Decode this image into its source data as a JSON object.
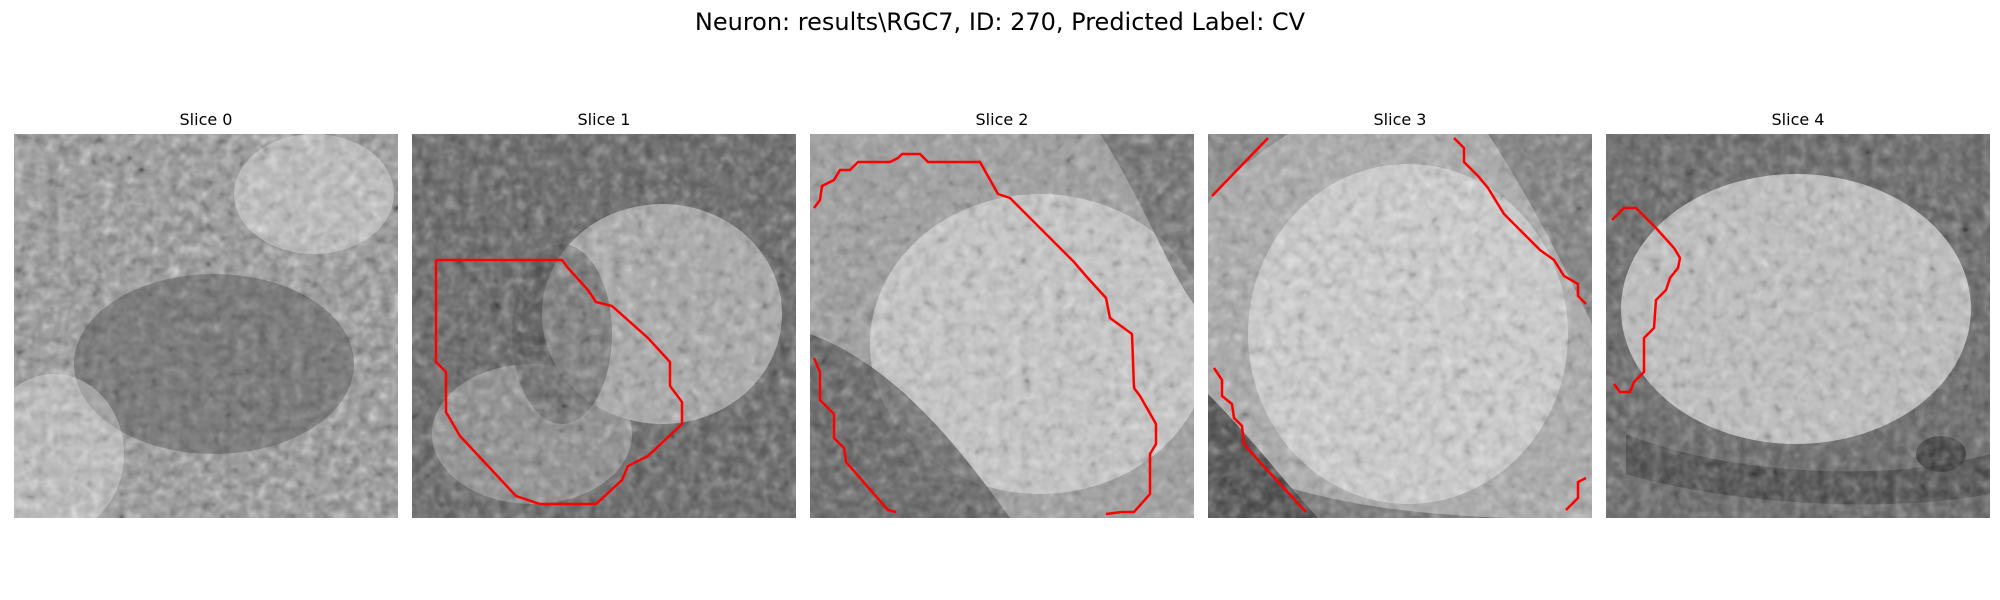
{
  "figure": {
    "title": "Neuron: results\\RGC7, ID: 270, Predicted Label: CV"
  },
  "panels": [
    {
      "title": "Slice 0",
      "scene": "noisy grayscale microscopy patch",
      "contour": "none"
    },
    {
      "title": "Slice 1",
      "scene": "cell body with red segmentation outline",
      "contour": "closed"
    },
    {
      "title": "Slice 2",
      "scene": "large bright cell with partial red outline",
      "contour": "partial"
    },
    {
      "title": "Slice 3",
      "scene": "bright cell with red outline fragments at corners",
      "contour": "fragments"
    },
    {
      "title": "Slice 4",
      "scene": "bright cell with small red outline on left",
      "contour": "partial"
    }
  ],
  "colors": {
    "contour": "#ff0000"
  }
}
